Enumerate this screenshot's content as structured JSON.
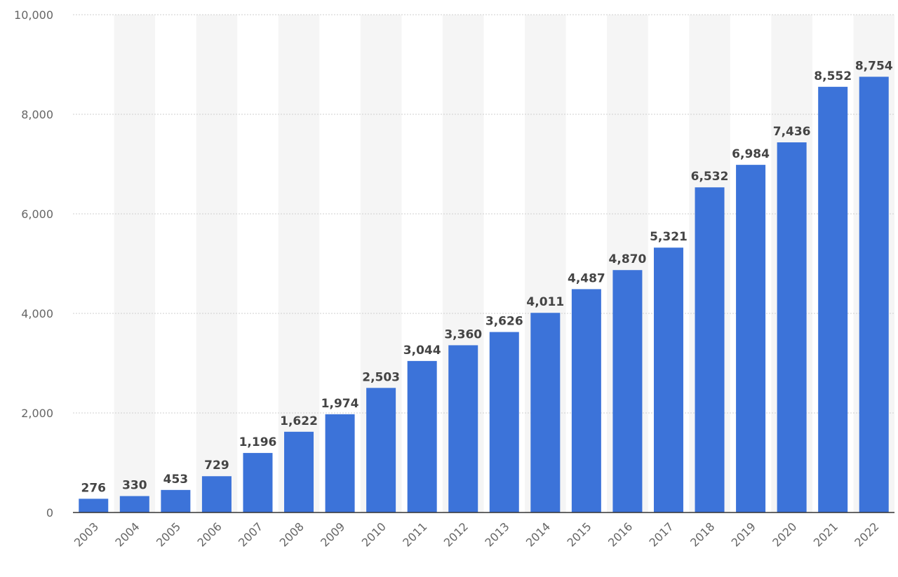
{
  "chart_data": {
    "type": "bar",
    "title": "",
    "xlabel": "",
    "ylabel": "",
    "categories": [
      "2003",
      "2004",
      "2005",
      "2006",
      "2007",
      "2008",
      "2009",
      "2010",
      "2011",
      "2012",
      "2013",
      "2014",
      "2015",
      "2016",
      "2017",
      "2018",
      "2019",
      "2020",
      "2021",
      "2022"
    ],
    "values": [
      276,
      330,
      453,
      729,
      1196,
      1622,
      1974,
      2503,
      3044,
      3360,
      3626,
      4011,
      4487,
      4870,
      5321,
      6532,
      6984,
      7436,
      8552,
      8754
    ],
    "value_labels": [
      "276",
      "330",
      "453",
      "729",
      "1,196",
      "1,622",
      "1,974",
      "2,503",
      "3,044",
      "3,360",
      "3,626",
      "4,011",
      "4,487",
      "4,870",
      "5,321",
      "6,532",
      "6,984",
      "7,436",
      "8,552",
      "8,754"
    ],
    "ylim": [
      0,
      10000
    ],
    "yticks": [
      0,
      2000,
      4000,
      6000,
      8000,
      10000
    ],
    "ytick_labels": [
      "0",
      "2,000",
      "4,000",
      "6,000",
      "8,000",
      "10,000"
    ],
    "grid": true,
    "bar_color": "#3c73d9",
    "band_color": "#f5f5f5"
  }
}
